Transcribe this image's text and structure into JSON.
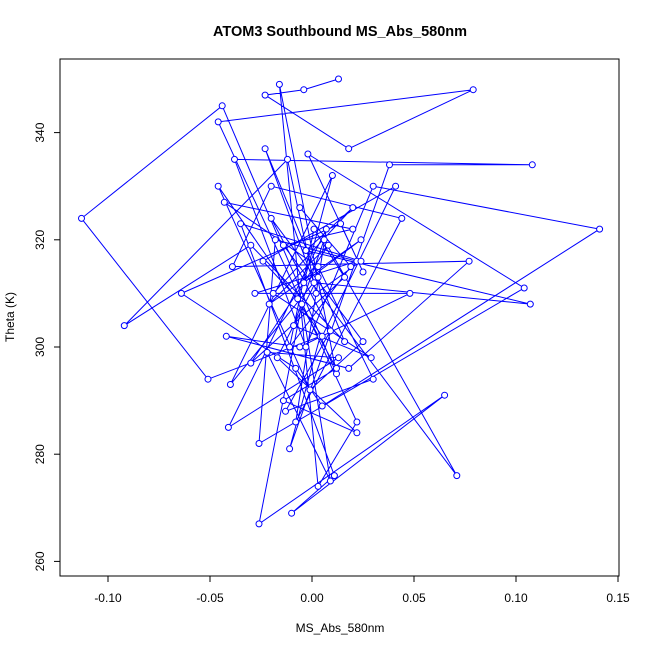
{
  "chart_data": {
    "type": "line",
    "title": "ATOM3 Southbound MS_Abs_580nm",
    "xlabel": "MS_Abs_580nm",
    "ylabel": "Theta (K)",
    "xlim": [
      -0.125,
      0.15
    ],
    "ylim": [
      255,
      355
    ],
    "x_ticks": [
      "-0.10",
      "-0.05",
      "0.00",
      "0.05",
      "0.10",
      "0.15"
    ],
    "x_tick_values": [
      -0.1,
      -0.05,
      0.0,
      0.05,
      0.1,
      0.15
    ],
    "y_ticks": [
      "260",
      "280",
      "300",
      "320",
      "340"
    ],
    "y_tick_values": [
      260,
      280,
      300,
      320,
      340
    ],
    "grid": false,
    "legend": "none",
    "series_color": "#0000ff",
    "marker": "open-circle",
    "series": [
      {
        "x": [
          0.013,
          -0.004,
          -0.023,
          0.018,
          0.079,
          -0.046,
          0.022,
          0.003,
          -0.016,
          0.012,
          -0.044,
          -0.113,
          -0.051,
          0.004,
          -0.011,
          0.038,
          0.108,
          -0.038,
          -0.003,
          0.03,
          0.141,
          0.005,
          -0.008,
          -0.064,
          0.014,
          0.025,
          -0.002,
          0.104,
          -0.026,
          -0.018,
          0.022,
          -0.028,
          0.048,
          -0.006,
          -0.042,
          0.018,
          0.077,
          -0.039,
          -0.02,
          0.044,
          -0.008,
          0.007,
          -0.041,
          0.013,
          -0.022,
          0.009,
          -0.005,
          -0.026,
          0.065,
          -0.01,
          0.011,
          -0.035,
          0.024,
          0.002,
          -0.012,
          -0.092,
          -0.03,
          0.016,
          -0.023,
          0.001,
          0.107,
          -0.003,
          0.02,
          -0.019,
          0.029,
          -0.009,
          0.006,
          0.071,
          -0.014,
          0.02,
          -0.043,
          0.003,
          0.03,
          -0.013,
          0.009,
          -0.02,
          0.025,
          -0.001,
          -0.046,
          0.005,
          0.041,
          -0.024,
          -0.007,
          0.012,
          -0.014,
          0.022,
          -0.017,
          0.003,
          -0.04,
          0.01,
          -0.004,
          0.024,
          -0.021,
          0.008,
          -0.03,
          0.016,
          0.001,
          -0.011,
          0.019,
          -0.006
        ],
        "y": [
          350,
          348,
          347,
          337,
          348,
          342,
          286,
          274,
          349,
          295,
          345,
          324,
          294,
          302,
          281,
          334,
          334,
          335,
          300,
          330,
          322,
          289,
          296,
          310,
          323,
          314,
          336,
          311,
          282,
          320,
          316,
          310,
          310,
          300,
          302,
          296,
          316,
          315,
          330,
          324,
          286,
          322,
          285,
          298,
          299,
          275,
          308,
          267,
          291,
          269,
          276,
          323,
          316,
          310,
          335,
          304,
          319,
          301,
          337,
          312,
          308,
          318,
          326,
          310,
          298,
          304,
          320,
          276,
          319,
          322,
          327,
          315,
          294,
          288,
          303,
          324,
          301,
          292,
          330,
          302,
          330,
          316,
          309,
          296,
          290,
          284,
          298,
          313,
          293,
          332,
          312,
          320,
          308,
          319,
          297,
          313,
          322,
          300,
          315,
          326
        ]
      }
    ]
  }
}
